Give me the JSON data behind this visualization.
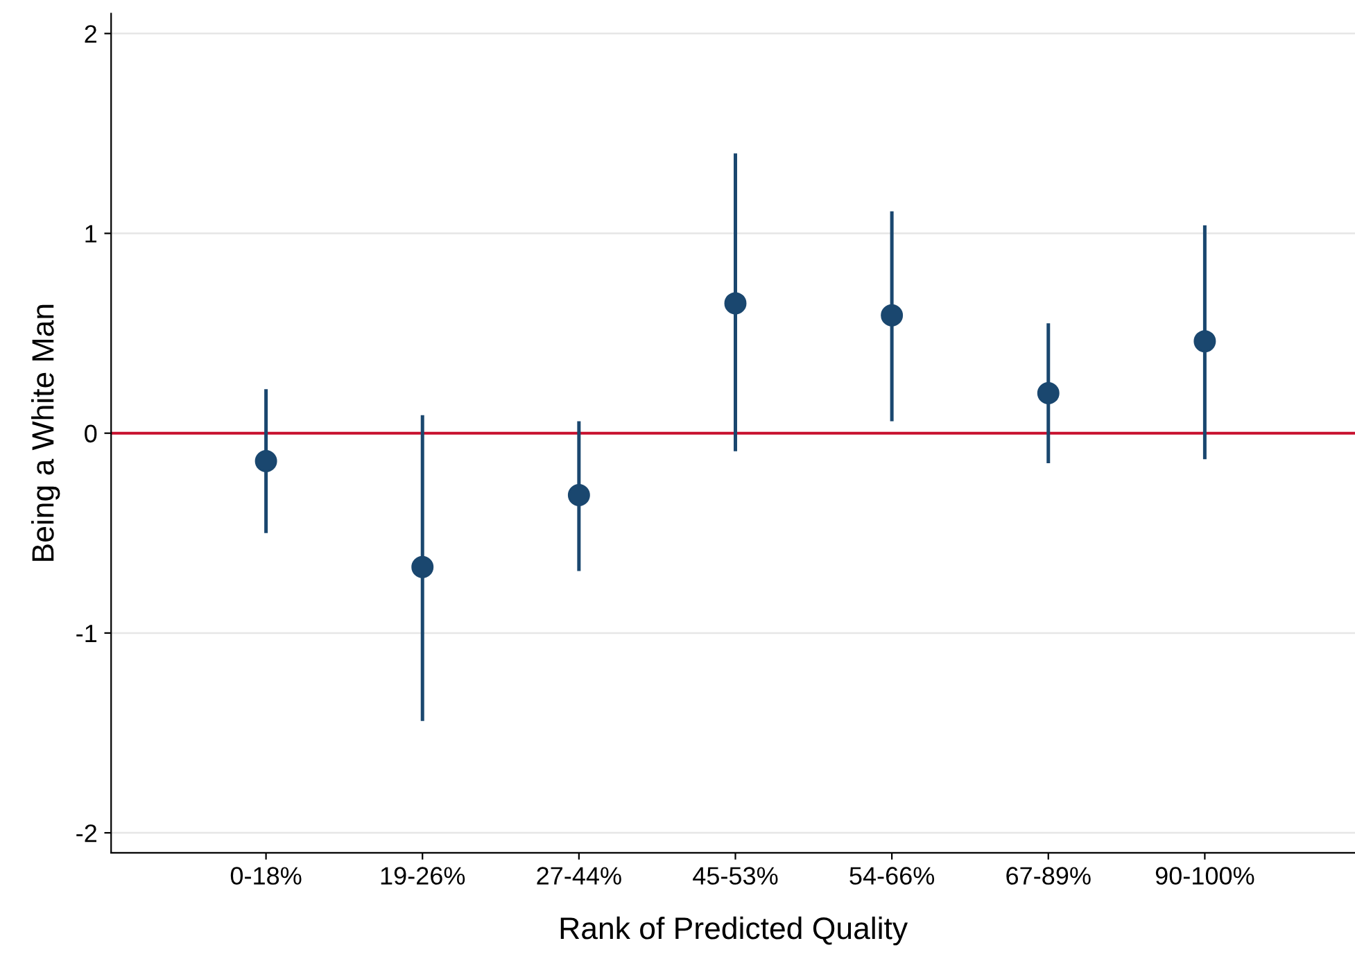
{
  "chart_data": {
    "type": "scatter",
    "xlabel": "Rank of Predicted Quality",
    "ylabel": "Being a White Man",
    "categories": [
      "0-18%",
      "19-26%",
      "27-44%",
      "45-53%",
      "54-66%",
      "67-89%",
      "90-100%"
    ],
    "series": [
      {
        "color": "#1a476f",
        "values": [
          -0.14,
          -0.67,
          -0.31,
          0.65,
          0.59,
          0.2,
          0.46
        ],
        "errors": [
          [
            -0.5,
            0.22
          ],
          [
            -1.44,
            0.09
          ],
          [
            -0.69,
            0.06
          ],
          [
            -0.09,
            1.4
          ],
          [
            0.06,
            1.11
          ],
          [
            -0.15,
            0.55
          ],
          [
            -0.13,
            1.04
          ]
        ]
      }
    ],
    "ylim": [
      -2.1,
      2.1
    ],
    "yticks": [
      -2,
      -1,
      0,
      1,
      2
    ],
    "grid": "y",
    "marker": "circle",
    "ref_lines": [
      {
        "axis": "y",
        "value": 0,
        "color": "#c8102e"
      }
    ]
  }
}
